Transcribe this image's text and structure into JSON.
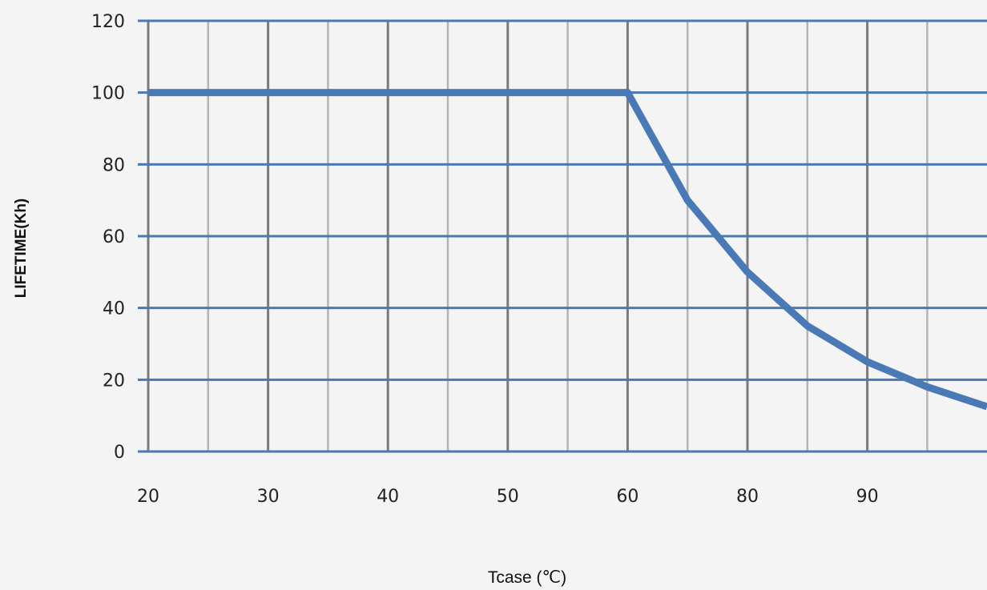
{
  "colors": {
    "background": "#f4f4f4",
    "horizontal_grid": "#4a7ab6",
    "vertical_grid_dark": "#7a7a7a",
    "vertical_grid_light": "#b4b4b4",
    "series": "#4a7ab6"
  },
  "chart_data": {
    "type": "line",
    "title": "",
    "xlabel": "Tcase (℃)",
    "ylabel": "LIFETIME(Kh)",
    "x_scale": "categorical (printed tick labels are not evenly spaced in value)",
    "x_ticks": [
      "20",
      "30",
      "40",
      "50",
      "60",
      "80",
      "90"
    ],
    "y_ticks": [
      "0",
      "20",
      "40",
      "60",
      "80",
      "100",
      "120"
    ],
    "ylim": [
      0,
      120
    ],
    "grid": true,
    "series": [
      {
        "name": "",
        "points": [
          {
            "x": "20",
            "y": 100
          },
          {
            "x": "30",
            "y": 100
          },
          {
            "x": "40",
            "y": 100
          },
          {
            "x": "50",
            "y": 100
          },
          {
            "x": "60",
            "y": 100
          },
          {
            "x": "60–80",
            "y": 70
          },
          {
            "x": "80",
            "y": 50
          },
          {
            "x": "80–90",
            "y": 35
          },
          {
            "x": "90",
            "y": 25
          },
          {
            "x": "90+",
            "y": 18
          },
          {
            "x": "right edge",
            "y": 12.5
          }
        ]
      }
    ]
  }
}
